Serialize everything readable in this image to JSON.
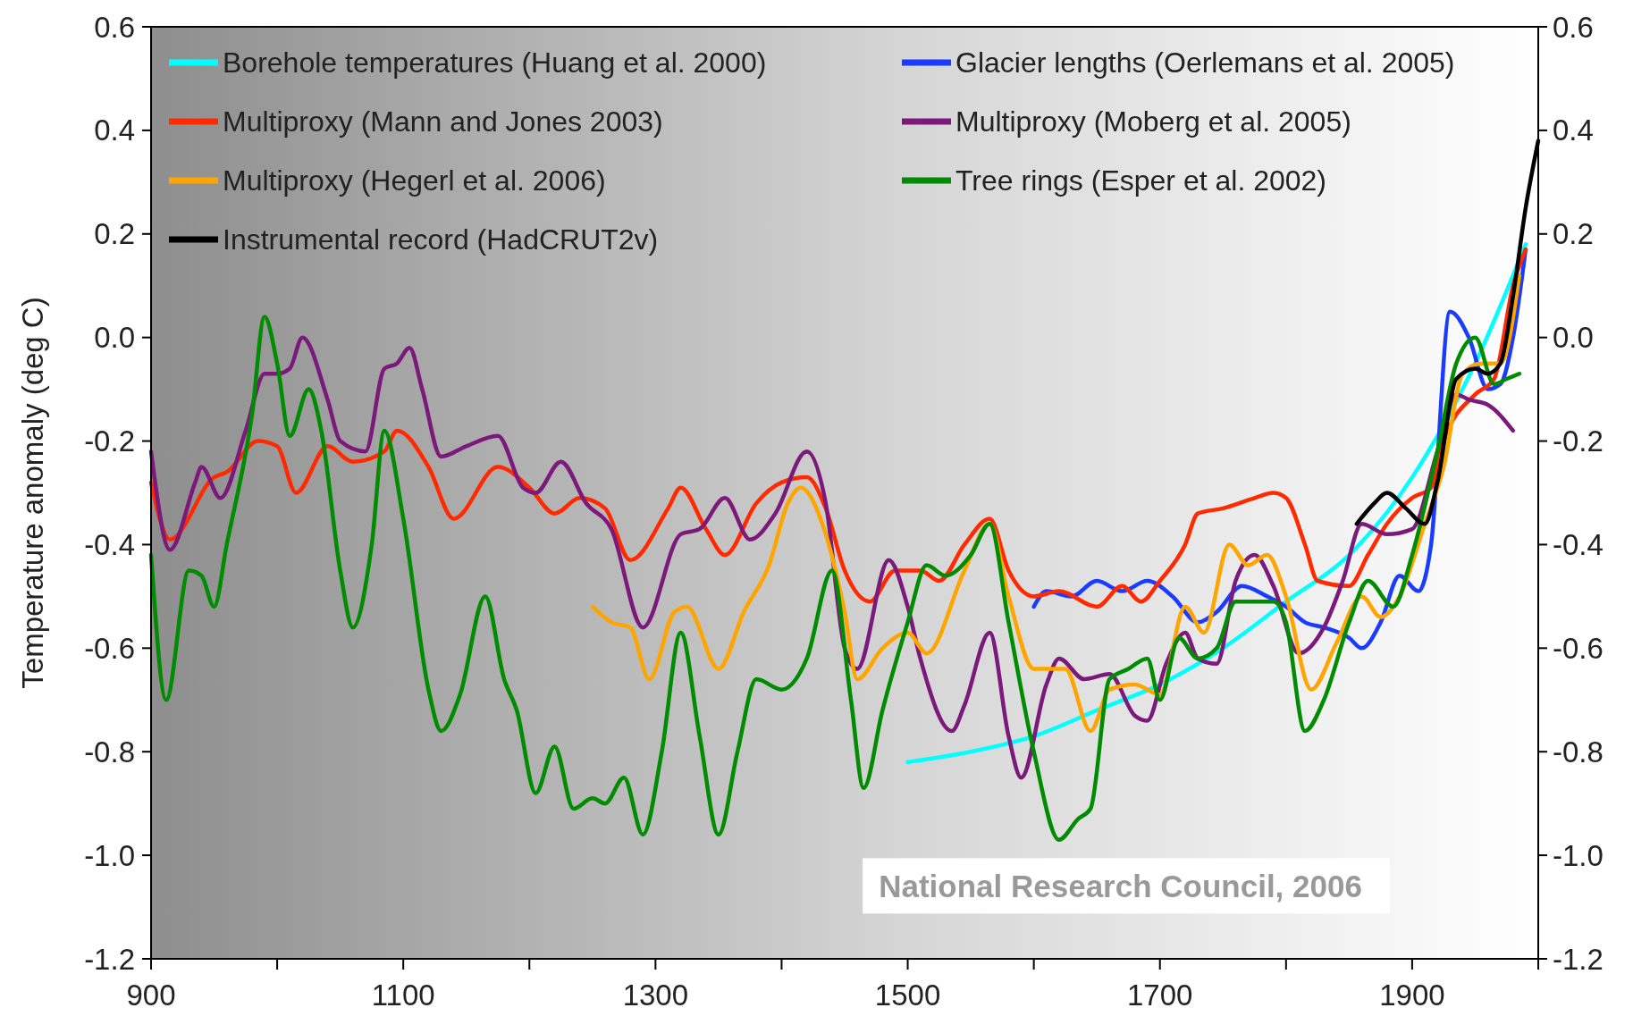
{
  "chart_data": {
    "type": "line",
    "ylabel": "Temperature anomaly (deg C)",
    "xlim": [
      900,
      2000
    ],
    "xticks": [
      900,
      {
        "value": 1000,
        "label": null
      },
      1100,
      {
        "value": 1200,
        "label": null
      },
      1300,
      {
        "value": 1400,
        "label": null
      },
      1500,
      {
        "value": 1600,
        "label": null
      },
      1700,
      {
        "value": 1800,
        "label": null
      },
      1900,
      {
        "value": 2000,
        "label": null
      }
    ],
    "ylim": [
      -1.2,
      0.6
    ],
    "yticks": [
      {
        "value": -1.2,
        "label": "-1.2"
      },
      {
        "value": -1,
        "label": "-1.0"
      },
      {
        "value": -0.8,
        "label": "-0.8"
      },
      {
        "value": -0.6,
        "label": "-0.6"
      },
      {
        "value": -0.4,
        "label": "-0.4"
      },
      {
        "value": -0.2,
        "label": "-0.2"
      },
      {
        "value": 0,
        "label": "0.0"
      },
      {
        "value": 0.2,
        "label": "0.2"
      },
      {
        "value": 0.4,
        "label": "0.4"
      },
      {
        "value": 0.6,
        "label": "0.6"
      }
    ],
    "y2lim": [
      -1.2,
      0.6
    ],
    "y2ticks": [
      {
        "value": -1.2,
        "label": "-1.2"
      },
      {
        "value": -1,
        "label": "-1.0"
      },
      {
        "value": -0.8,
        "label": "-0.8"
      },
      {
        "value": -0.6,
        "label": "-0.6"
      },
      {
        "value": -0.4,
        "label": "-0.4"
      },
      {
        "value": -0.2,
        "label": "-0.2"
      },
      {
        "value": 0,
        "label": "0.0"
      },
      {
        "value": 0.2,
        "label": "0.2"
      },
      {
        "value": 0.4,
        "label": "0.4"
      },
      {
        "value": 0.6,
        "label": "0.6"
      }
    ],
    "legend": "top left",
    "marker": "none",
    "line_style": "solid",
    "annotations": [
      "National Research Council, 2006"
    ],
    "series": [
      {
        "name": "Borehole temperatures (Huang et al. 2000)",
        "color": "#00ffff",
        "x": [
          1500,
          1550,
          1600,
          1650,
          1700,
          1750,
          1800,
          1850,
          1900,
          1950,
          1990
        ],
        "values": [
          -0.82,
          -0.8,
          -0.77,
          -0.72,
          -0.67,
          -0.6,
          -0.51,
          -0.42,
          -0.27,
          -0.05,
          0.18
        ]
      },
      {
        "name": "Glacier lengths (Oerlemans et al. 2005)",
        "color": "#1a3cff",
        "x": [
          1600,
          1610,
          1630,
          1650,
          1670,
          1690,
          1710,
          1730,
          1745,
          1765,
          1785,
          1800,
          1815,
          1830,
          1850,
          1860,
          1875,
          1890,
          1905,
          1915,
          1930,
          1945,
          1960,
          1970,
          1980,
          1990
        ],
        "values": [
          -0.52,
          -0.49,
          -0.5,
          -0.47,
          -0.49,
          -0.47,
          -0.5,
          -0.55,
          -0.53,
          -0.48,
          -0.5,
          -0.52,
          -0.55,
          -0.56,
          -0.58,
          -0.6,
          -0.55,
          -0.46,
          -0.49,
          -0.4,
          0.05,
          0,
          -0.1,
          -0.09,
          0,
          0.17
        ]
      },
      {
        "name": "Multiproxy (Mann and Jones 2003)",
        "color": "#ff2a00",
        "x": [
          900,
          915,
          950,
          960,
          985,
          1000,
          1015,
          1040,
          1060,
          1085,
          1095,
          1120,
          1140,
          1175,
          1200,
          1220,
          1240,
          1260,
          1280,
          1310,
          1320,
          1340,
          1355,
          1380,
          1400,
          1420,
          1435,
          1450,
          1470,
          1490,
          1510,
          1525,
          1545,
          1565,
          1580,
          1600,
          1620,
          1650,
          1670,
          1685,
          1700,
          1720,
          1730,
          1750,
          1775,
          1790,
          1800,
          1815,
          1825,
          1850,
          1865,
          1880,
          1900,
          1915,
          1925,
          1950,
          1965,
          1980,
          1990
        ],
        "values": [
          -0.28,
          -0.39,
          -0.27,
          -0.26,
          -0.2,
          -0.21,
          -0.3,
          -0.21,
          -0.24,
          -0.22,
          -0.18,
          -0.25,
          -0.35,
          -0.25,
          -0.29,
          -0.34,
          -0.31,
          -0.33,
          -0.43,
          -0.33,
          -0.29,
          -0.37,
          -0.42,
          -0.32,
          -0.28,
          -0.27,
          -0.33,
          -0.45,
          -0.51,
          -0.45,
          -0.45,
          -0.47,
          -0.4,
          -0.35,
          -0.45,
          -0.5,
          -0.49,
          -0.52,
          -0.48,
          -0.51,
          -0.47,
          -0.4,
          -0.34,
          -0.33,
          -0.31,
          -0.3,
          -0.31,
          -0.4,
          -0.47,
          -0.48,
          -0.42,
          -0.36,
          -0.31,
          -0.29,
          -0.2,
          -0.11,
          -0.08,
          0.1,
          0.17
        ]
      },
      {
        "name": "Multiproxy (Moberg et al. 2005)",
        "color": "#7b1a7b",
        "x": [
          900,
          915,
          935,
          940,
          955,
          975,
          990,
          1000,
          1010,
          1020,
          1040,
          1050,
          1070,
          1085,
          1095,
          1105,
          1115,
          1130,
          1150,
          1175,
          1195,
          1205,
          1225,
          1245,
          1265,
          1290,
          1320,
          1335,
          1355,
          1375,
          1395,
          1420,
          1435,
          1450,
          1460,
          1485,
          1500,
          1510,
          1535,
          1545,
          1565,
          1580,
          1590,
          1610,
          1620,
          1640,
          1660,
          1680,
          1690,
          1705,
          1720,
          1730,
          1745,
          1760,
          1775,
          1790,
          1810,
          1830,
          1845,
          1860,
          1880,
          1900,
          1920,
          1935,
          1945,
          1960,
          1980
        ],
        "values": [
          -0.22,
          -0.41,
          -0.28,
          -0.25,
          -0.31,
          -0.18,
          -0.07,
          -0.07,
          -0.06,
          0,
          -0.12,
          -0.2,
          -0.22,
          -0.06,
          -0.05,
          -0.02,
          -0.1,
          -0.23,
          -0.21,
          -0.19,
          -0.29,
          -0.3,
          -0.24,
          -0.32,
          -0.37,
          -0.56,
          -0.38,
          -0.37,
          -0.31,
          -0.39,
          -0.34,
          -0.22,
          -0.32,
          -0.6,
          -0.64,
          -0.43,
          -0.52,
          -0.62,
          -0.76,
          -0.71,
          -0.57,
          -0.77,
          -0.85,
          -0.67,
          -0.62,
          -0.66,
          -0.65,
          -0.73,
          -0.74,
          -0.63,
          -0.57,
          -0.62,
          -0.63,
          -0.47,
          -0.42,
          -0.48,
          -0.61,
          -0.56,
          -0.47,
          -0.36,
          -0.38,
          -0.37,
          -0.22,
          -0.11,
          -0.12,
          -0.13,
          -0.18
        ]
      },
      {
        "name": "Multiproxy (Hegerl et al. 2006)",
        "color": "#ffa500",
        "x": [
          1250,
          1265,
          1280,
          1295,
          1315,
          1325,
          1350,
          1370,
          1390,
          1405,
          1415,
          1435,
          1450,
          1460,
          1480,
          1500,
          1515,
          1545,
          1565,
          1580,
          1600,
          1625,
          1645,
          1660,
          1680,
          1700,
          1720,
          1735,
          1755,
          1770,
          1785,
          1800,
          1820,
          1840,
          1860,
          1875,
          1890,
          1910,
          1925,
          1940,
          1955,
          1970,
          1985
        ],
        "values": [
          -0.52,
          -0.55,
          -0.56,
          -0.66,
          -0.53,
          -0.52,
          -0.64,
          -0.53,
          -0.44,
          -0.32,
          -0.29,
          -0.38,
          -0.53,
          -0.66,
          -0.6,
          -0.57,
          -0.61,
          -0.45,
          -0.36,
          -0.5,
          -0.64,
          -0.64,
          -0.76,
          -0.68,
          -0.67,
          -0.69,
          -0.52,
          -0.57,
          -0.4,
          -0.44,
          -0.42,
          -0.5,
          -0.68,
          -0.59,
          -0.5,
          -0.54,
          -0.5,
          -0.36,
          -0.25,
          -0.07,
          -0.05,
          -0.05,
          0.12
        ]
      },
      {
        "name": "Tree rings (Esper et al. 2002)",
        "color": "#008c00",
        "x": [
          900,
          912,
          930,
          940,
          950,
          960,
          980,
          990,
          1000,
          1010,
          1025,
          1035,
          1050,
          1060,
          1075,
          1085,
          1100,
          1120,
          1130,
          1145,
          1165,
          1180,
          1190,
          1205,
          1220,
          1235,
          1250,
          1260,
          1275,
          1290,
          1305,
          1320,
          1335,
          1350,
          1365,
          1380,
          1400,
          1420,
          1440,
          1455,
          1465,
          1480,
          1500,
          1515,
          1530,
          1550,
          1565,
          1580,
          1600,
          1620,
          1635,
          1645,
          1660,
          1675,
          1690,
          1700,
          1715,
          1730,
          1745,
          1760,
          1790,
          1800,
          1815,
          1830,
          1850,
          1865,
          1885,
          1900,
          1920,
          1935,
          1950,
          1965,
          1975,
          1985
        ],
        "values": [
          -0.42,
          -0.7,
          -0.45,
          -0.46,
          -0.52,
          -0.4,
          -0.15,
          0.04,
          -0.05,
          -0.19,
          -0.1,
          -0.18,
          -0.45,
          -0.56,
          -0.4,
          -0.18,
          -0.35,
          -0.68,
          -0.76,
          -0.69,
          -0.5,
          -0.66,
          -0.72,
          -0.88,
          -0.79,
          -0.91,
          -0.89,
          -0.9,
          -0.85,
          -0.96,
          -0.8,
          -0.57,
          -0.77,
          -0.96,
          -0.8,
          -0.66,
          -0.68,
          -0.62,
          -0.45,
          -0.7,
          -0.87,
          -0.72,
          -0.55,
          -0.44,
          -0.46,
          -0.42,
          -0.36,
          -0.55,
          -0.8,
          -0.97,
          -0.93,
          -0.91,
          -0.66,
          -0.64,
          -0.62,
          -0.7,
          -0.58,
          -0.62,
          -0.6,
          -0.51,
          -0.51,
          -0.55,
          -0.76,
          -0.7,
          -0.55,
          -0.47,
          -0.52,
          -0.42,
          -0.22,
          -0.05,
          0,
          -0.09,
          -0.08,
          -0.07
        ]
      },
      {
        "name": "Instrumental record (HadCRUT2v)",
        "color": "#000000",
        "x": [
          1856,
          1870,
          1880,
          1895,
          1910,
          1920,
          1935,
          1950,
          1960,
          1970,
          1980,
          1990,
          2000
        ],
        "values": [
          -0.36,
          -0.32,
          -0.3,
          -0.33,
          -0.36,
          -0.28,
          -0.08,
          -0.06,
          -0.07,
          -0.05,
          0.08,
          0.25,
          0.38
        ]
      }
    ]
  }
}
